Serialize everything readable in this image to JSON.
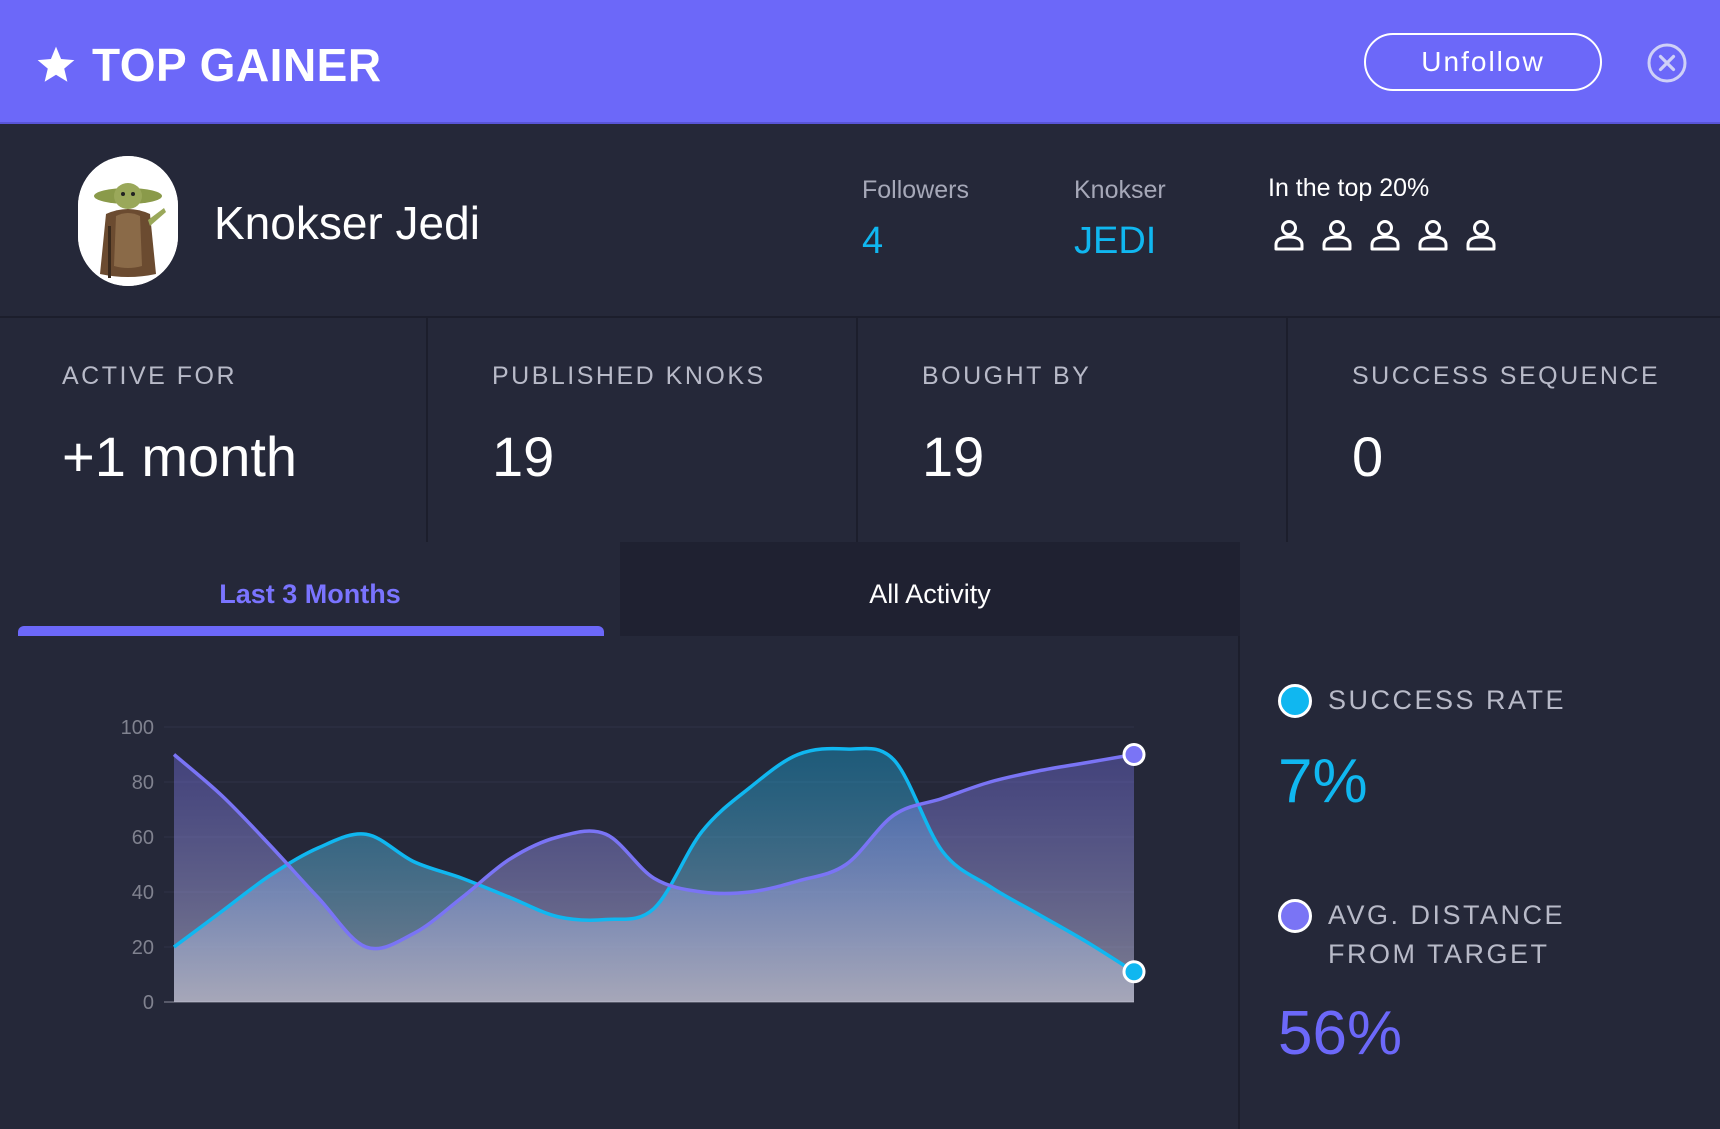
{
  "header": {
    "title": "TOP GAINER",
    "unfollow_label": "Unfollow"
  },
  "profile": {
    "name": "Knokser Jedi",
    "followers_label": "Followers",
    "followers_value": "4",
    "knokser_label": "Knokser",
    "knokser_value": "JEDI",
    "top_label": "In the top 20%",
    "top_icons": [
      "person-icon",
      "person-icon",
      "person-icon",
      "person-icon",
      "person-icon"
    ]
  },
  "stats": [
    {
      "label": "ACTIVE FOR",
      "value": "+1 month"
    },
    {
      "label": "PUBLISHED KNOKS",
      "value": "19"
    },
    {
      "label": "BOUGHT BY",
      "value": "19"
    },
    {
      "label": "SUCCESS SEQUENCE",
      "value": "0"
    }
  ],
  "tabs": [
    {
      "label": "Last 3 Months",
      "active": true
    },
    {
      "label": "All Activity",
      "active": false
    }
  ],
  "legend": {
    "success_rate_label": "SUCCESS RATE",
    "success_rate_value": "7%",
    "avg_distance_label_line1": "AVG. DISTANCE",
    "avg_distance_label_line2": "FROM TARGET",
    "avg_distance_value": "56%"
  },
  "colors": {
    "accent": "#6c68f9",
    "success_rate": "#10b7f0",
    "avg_distance": "#7a74f5",
    "background": "#252839"
  },
  "chart_data": {
    "type": "area",
    "ylim": [
      0,
      100
    ],
    "yticks": [
      "0",
      "20",
      "40",
      "60",
      "80",
      "100"
    ],
    "x": [
      0,
      1,
      2,
      3,
      4,
      5,
      6,
      7,
      8,
      9,
      10,
      11,
      12,
      13,
      14,
      15,
      16,
      17,
      18,
      19,
      20
    ],
    "series": [
      {
        "color": "#10b7f0",
        "values": [
          20,
          33,
          46,
          56,
          61,
          51,
          45,
          38,
          31,
          30,
          34,
          62,
          78,
          90,
          92,
          88,
          55,
          42,
          32,
          22,
          11
        ]
      },
      {
        "color": "#7a74f5",
        "values": [
          90,
          75,
          57,
          38,
          20,
          25,
          38,
          52,
          60,
          61,
          45,
          40,
          40,
          44,
          50,
          68,
          74,
          80,
          84,
          87,
          90
        ]
      }
    ]
  }
}
